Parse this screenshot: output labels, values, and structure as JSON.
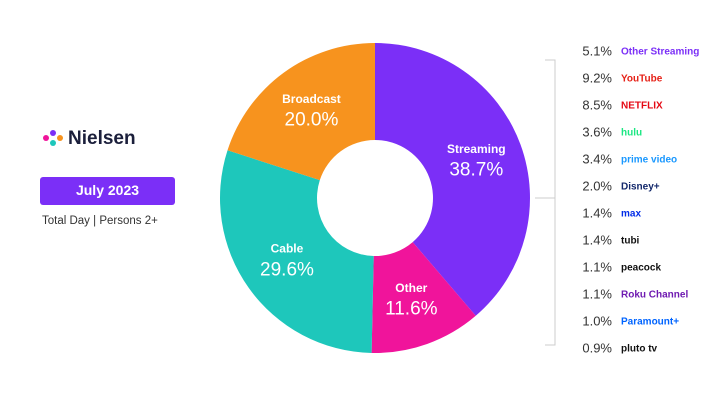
{
  "brand": "Nielsen",
  "period": "July 2023",
  "subtitle": "Total Day | Persons 2+",
  "chart_data": {
    "type": "pie",
    "categories": [
      "Streaming",
      "Other",
      "Cable",
      "Broadcast"
    ],
    "values": [
      38.7,
      11.6,
      29.6,
      20.0
    ],
    "value_labels": [
      "38.7%",
      "11.6%",
      "29.6%",
      "20.0%"
    ],
    "colors": [
      "#7b2ff7",
      "#f0149b",
      "#1ec7bb",
      "#f7931e"
    ]
  },
  "breakdown": {
    "items": [
      {
        "share": "5.1%",
        "service": "Other Streaming",
        "color": "#7b2ff7"
      },
      {
        "share": "9.2%",
        "service": "YouTube",
        "color": "#e62117"
      },
      {
        "share": "8.5%",
        "service": "NETFLIX",
        "color": "#e50914"
      },
      {
        "share": "3.6%",
        "service": "hulu",
        "color": "#1ce783"
      },
      {
        "share": "3.4%",
        "service": "prime video",
        "color": "#1a98ff"
      },
      {
        "share": "2.0%",
        "service": "Disney+",
        "color": "#13286b"
      },
      {
        "share": "1.4%",
        "service": "max",
        "color": "#002be7"
      },
      {
        "share": "1.4%",
        "service": "tubi",
        "color": "#111111"
      },
      {
        "share": "1.1%",
        "service": "peacock",
        "color": "#111111"
      },
      {
        "share": "1.1%",
        "service": "Roku Channel",
        "color": "#6f1ab1"
      },
      {
        "share": "1.0%",
        "service": "Paramount+",
        "color": "#0064ff"
      },
      {
        "share": "0.9%",
        "service": "pluto tv",
        "color": "#111111"
      }
    ]
  }
}
